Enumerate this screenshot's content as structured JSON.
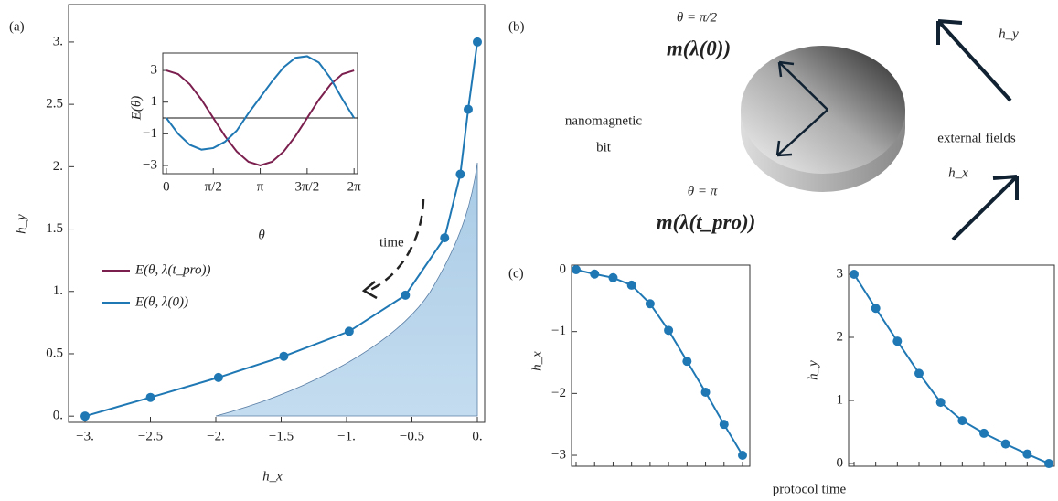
{
  "panel_labels": [
    "(a)",
    "(b)",
    "(c)"
  ],
  "chart_data": [
    {
      "type": "line",
      "x_label": "h_x",
      "y_label": "h_y",
      "annotation": "time",
      "markers": true,
      "color": "#1f78b4",
      "x": [
        -3,
        -2.5,
        -1.98,
        -1.48,
        -0.98,
        -0.55,
        -0.25,
        -0.13,
        -0.07,
        0
      ],
      "values": [
        0,
        0.15,
        0.31,
        0.48,
        0.68,
        0.97,
        1.43,
        1.94,
        2.46,
        3.0
      ],
      "xlim": [
        -3.126,
        0.056
      ],
      "ylim": [
        -0.05,
        3.3
      ],
      "xticks": [
        {
          "value": -3,
          "label": "−3."
        },
        {
          "value": -2.5,
          "label": "−2.5"
        },
        {
          "value": -2,
          "label": "−2."
        },
        {
          "value": -1.5,
          "label": "−1.5"
        },
        {
          "value": -1,
          "label": "−1."
        },
        {
          "value": -0.5,
          "label": "−0.5"
        },
        {
          "value": 0,
          "label": "0."
        }
      ],
      "yticks": [
        {
          "value": 0,
          "label": "0."
        },
        0.5,
        {
          "value": 1,
          "label": "1."
        },
        1.5,
        {
          "value": 2,
          "label": "2."
        },
        2.5,
        {
          "value": 3,
          "label": "3."
        }
      ]
    },
    {
      "type": "line",
      "x_label": "θ",
      "y_label": "E(θ)",
      "x": [
        0,
        0.3927,
        0.7854,
        1.1781,
        1.5708,
        1.9635,
        2.3562,
        2.7489,
        3.1416,
        3.5343,
        3.927,
        4.3197,
        4.7124,
        5.1051,
        5.4978,
        5.8905,
        6.2832
      ],
      "series": [
        {
          "name": "E(θ, λ(t_pro))",
          "color": "#7b1f4e",
          "values": [
            3,
            2.77,
            2.12,
            1.15,
            0,
            -1.15,
            -2.12,
            -2.77,
            -3,
            -2.77,
            -2.12,
            -1.15,
            0,
            1.15,
            2.12,
            2.77,
            3
          ]
        },
        {
          "name": "E(θ, λ(0))",
          "color": "#1f78b4",
          "values": [
            0,
            -1.0,
            -1.7,
            -2.0,
            -1.9,
            -1.5,
            -0.8,
            0.3,
            1.3,
            2.3,
            3.2,
            3.8,
            3.9,
            3.5,
            2.5,
            1.2,
            0
          ]
        }
      ],
      "xlim": [
        -0.12,
        6.4
      ],
      "ylim": [
        -3.52,
        4.1
      ],
      "xticks": [
        0,
        {
          "value": 1.5708,
          "label": "π/2"
        },
        {
          "value": 3.1416,
          "label": "π"
        },
        {
          "value": 4.7124,
          "label": "3π/2"
        },
        {
          "value": 6.2832,
          "label": "2π"
        }
      ],
      "yticks": [
        3,
        1,
        {
          "value": -1,
          "label": "−1"
        },
        {
          "value": -3,
          "label": "−3"
        }
      ]
    },
    {
      "type": "line",
      "y_label": "h_x",
      "x_label": "protocol time",
      "markers": true,
      "color": "#1f78b4",
      "categories": [
        null,
        null,
        null,
        null,
        null,
        null,
        null,
        null,
        null,
        null
      ],
      "values": [
        0,
        -0.07,
        -0.13,
        -0.25,
        -0.55,
        -0.98,
        -1.48,
        -1.98,
        -2.5,
        -3.0
      ],
      "ylim": [
        -3.177,
        0.074
      ],
      "yticks": [
        0,
        {
          "value": -1,
          "label": "−1"
        },
        {
          "value": -2,
          "label": "−2"
        },
        {
          "value": -3,
          "label": "−3"
        }
      ]
    },
    {
      "type": "line",
      "y_label": "h_y",
      "markers": true,
      "color": "#1f78b4",
      "categories": [
        null,
        null,
        null,
        null,
        null,
        null,
        null,
        null,
        null,
        null
      ],
      "values": [
        3.0,
        2.46,
        1.94,
        1.43,
        0.97,
        0.68,
        0.48,
        0.31,
        0.15,
        0
      ],
      "ylim": [
        -0.043,
        3.145
      ],
      "yticks": [
        0,
        1,
        2,
        3
      ]
    }
  ],
  "diagram": {
    "theta_top": "θ = π/2",
    "m_top": "m(λ(0))",
    "bit_label": [
      "nanomagnetic",
      "bit"
    ],
    "theta_bottom": "θ = π",
    "m_bottom": "m(λ(t_pro))",
    "fields_label": "external fields",
    "hy": "h_y",
    "hx": "h_x"
  }
}
